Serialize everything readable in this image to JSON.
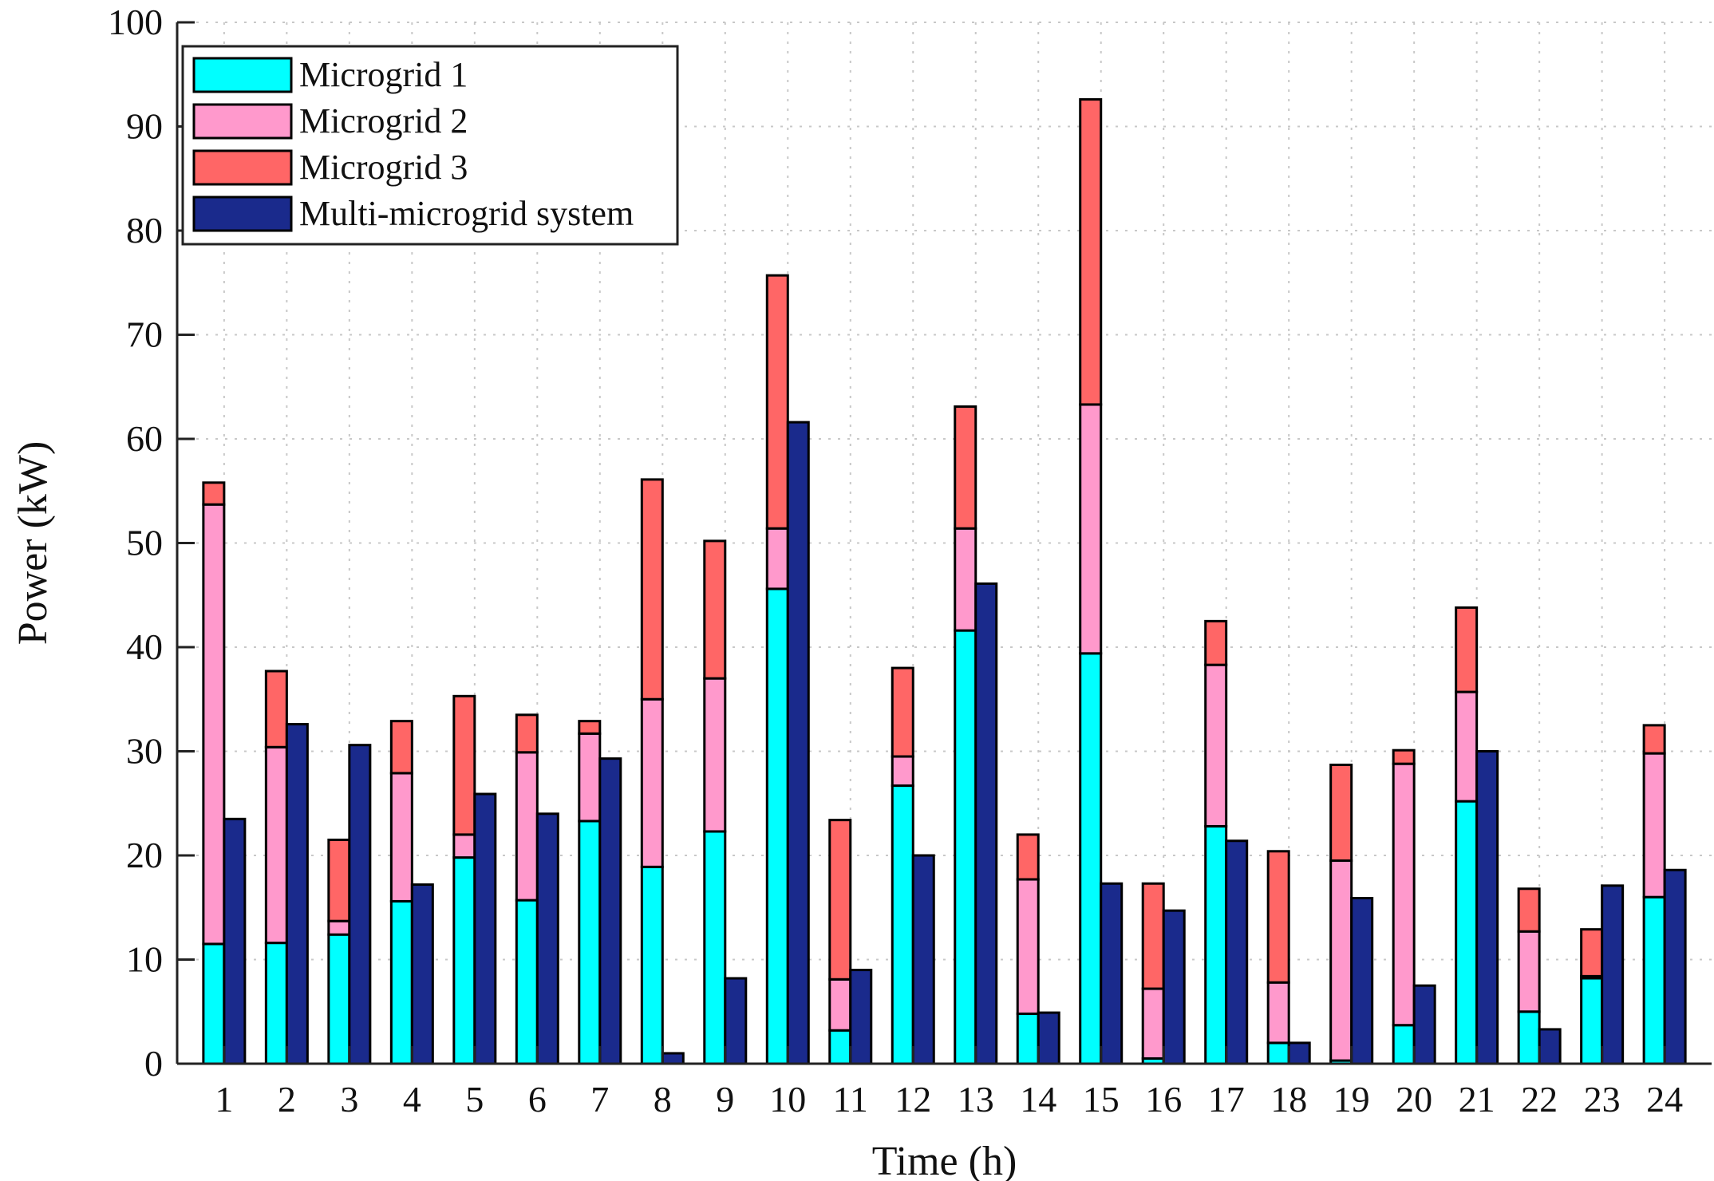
{
  "chart_data": {
    "type": "bar",
    "title": "",
    "xlabel": "Time (h)",
    "ylabel": "Power (kW)",
    "ylim": [
      0,
      100
    ],
    "yticks": [
      0,
      10,
      20,
      30,
      40,
      50,
      60,
      70,
      80,
      90,
      100
    ],
    "grid": true,
    "legend_position": "top-left",
    "categories": [
      "1",
      "2",
      "3",
      "4",
      "5",
      "6",
      "7",
      "8",
      "9",
      "10",
      "11",
      "12",
      "13",
      "14",
      "15",
      "16",
      "17",
      "18",
      "19",
      "20",
      "21",
      "22",
      "23",
      "24"
    ],
    "stacked_series": [
      {
        "name": "Microgrid 1",
        "color": "#00FFFF",
        "values": [
          11.5,
          11.6,
          12.4,
          15.6,
          19.8,
          15.7,
          23.3,
          18.9,
          22.3,
          45.6,
          3.2,
          26.7,
          41.6,
          4.8,
          39.4,
          0.5,
          22.8,
          2.0,
          0.3,
          3.7,
          25.2,
          5.0,
          8.2,
          16.0
        ]
      },
      {
        "name": "Microgrid 2",
        "color": "#FF99CC",
        "values": [
          42.2,
          18.8,
          1.3,
          12.3,
          2.2,
          14.2,
          8.4,
          16.1,
          14.7,
          5.8,
          4.9,
          2.8,
          9.8,
          12.9,
          23.9,
          6.7,
          15.5,
          5.8,
          19.2,
          25.1,
          10.5,
          7.7,
          0.2,
          13.8
        ]
      },
      {
        "name": "Microgrid 3",
        "color": "#FF6666",
        "values": [
          2.1,
          7.3,
          7.8,
          5.0,
          13.3,
          3.6,
          1.2,
          21.1,
          13.2,
          24.3,
          15.3,
          8.5,
          11.7,
          4.3,
          29.3,
          10.1,
          4.2,
          12.6,
          9.2,
          1.3,
          8.1,
          4.1,
          4.5,
          2.7
        ]
      }
    ],
    "series": [
      {
        "name": "Multi-microgrid system",
        "color": "#1A2A8C",
        "values": [
          23.5,
          32.6,
          30.6,
          17.2,
          25.9,
          24.0,
          29.3,
          1.0,
          8.2,
          61.6,
          9.0,
          20.0,
          46.1,
          4.9,
          17.3,
          14.7,
          21.4,
          2.0,
          15.9,
          7.5,
          30.0,
          3.3,
          17.1,
          18.6
        ]
      }
    ]
  }
}
